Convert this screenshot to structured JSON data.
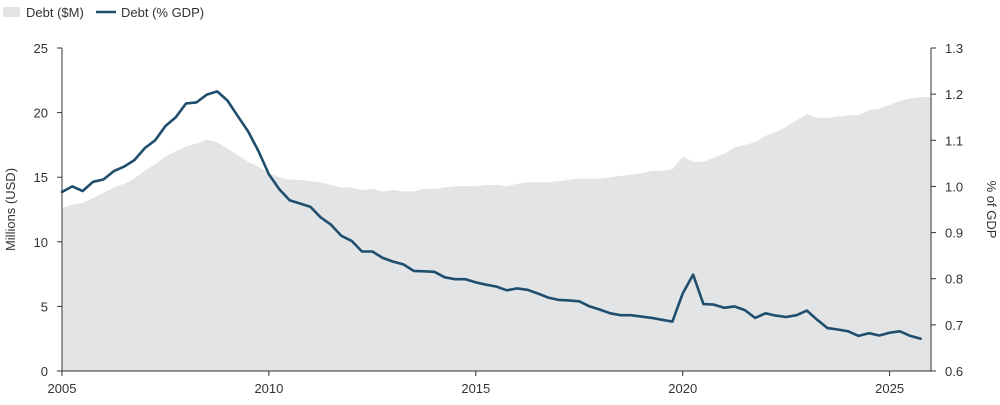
{
  "chart_data": {
    "type": "area+line",
    "title": "",
    "legend": {
      "placement": "top-left",
      "items": [
        {
          "label": "Debt ($M)",
          "kind": "area",
          "color": "#e3e4e6"
        },
        {
          "label": "Debt (% GDP)",
          "kind": "line",
          "color": "#1f4e6e"
        }
      ]
    },
    "x_axis": {
      "range": [
        2005,
        2026
      ],
      "ticks": [
        2005,
        2010,
        2015,
        2020,
        2025
      ],
      "tick_labels": [
        "2005",
        "2010",
        "2015",
        "2020",
        "2025"
      ]
    },
    "y_left": {
      "label": "Millions (USD)",
      "range": [
        0,
        25
      ],
      "ticks": [
        0,
        5,
        10,
        15,
        20,
        25
      ],
      "tick_labels": [
        "0",
        "5",
        "10",
        "15",
        "20",
        "25"
      ]
    },
    "y_right": {
      "label": "% of GDP",
      "range": [
        0.6,
        1.3
      ],
      "ticks": [
        0.6,
        0.7,
        0.8,
        0.9,
        1.0,
        1.1,
        1.2,
        1.3
      ],
      "tick_labels": [
        "0.6",
        "0.7",
        "0.8",
        "0.9",
        "1.0",
        "1.1",
        "1.2",
        "1.3"
      ]
    },
    "grid": false,
    "series": [
      {
        "name": "Debt ($M)",
        "axis": "left",
        "style": "area",
        "color": "#e3e4e6",
        "x": [
          2005.0,
          2005.25,
          2005.5,
          2005.75,
          2006.0,
          2006.25,
          2006.5,
          2006.75,
          2007.0,
          2007.25,
          2007.5,
          2007.75,
          2008.0,
          2008.25,
          2008.5,
          2008.75,
          2009.0,
          2009.25,
          2009.5,
          2009.75,
          2010.0,
          2010.25,
          2010.5,
          2010.75,
          2011.0,
          2011.25,
          2011.5,
          2011.75,
          2012.0,
          2012.25,
          2012.5,
          2012.75,
          2013.0,
          2013.25,
          2013.5,
          2013.75,
          2014.0,
          2014.25,
          2014.5,
          2014.75,
          2015.0,
          2015.25,
          2015.5,
          2015.75,
          2016.0,
          2016.25,
          2016.5,
          2016.75,
          2017.0,
          2017.25,
          2017.5,
          2017.75,
          2018.0,
          2018.25,
          2018.5,
          2018.75,
          2019.0,
          2019.25,
          2019.5,
          2019.75,
          2020.0,
          2020.25,
          2020.5,
          2020.75,
          2021.0,
          2021.25,
          2021.5,
          2021.75,
          2022.0,
          2022.25,
          2022.5,
          2022.75,
          2023.0,
          2023.25,
          2023.5,
          2023.75,
          2024.0,
          2024.25,
          2024.5,
          2024.75,
          2025.0,
          2025.25,
          2025.5,
          2025.75
        ],
        "values": [
          12.6,
          12.9,
          13.0,
          13.4,
          13.8,
          14.2,
          14.5,
          14.9,
          15.5,
          16.0,
          16.6,
          17.0,
          17.4,
          17.6,
          17.9,
          17.7,
          17.2,
          16.7,
          16.2,
          15.8,
          15.3,
          15.0,
          14.8,
          14.8,
          14.7,
          14.6,
          14.4,
          14.2,
          14.2,
          14.0,
          14.1,
          13.9,
          14.0,
          13.9,
          13.9,
          14.1,
          14.1,
          14.2,
          14.3,
          14.3,
          14.3,
          14.4,
          14.4,
          14.3,
          14.5,
          14.6,
          14.6,
          14.6,
          14.7,
          14.8,
          14.9,
          14.9,
          14.9,
          15.0,
          15.1,
          15.2,
          15.3,
          15.5,
          15.5,
          15.6,
          16.6,
          16.2,
          16.2,
          16.5,
          16.8,
          17.3,
          17.5,
          17.7,
          18.2,
          18.5,
          18.9,
          19.4,
          19.9,
          19.6,
          19.6,
          19.7,
          19.8,
          19.8,
          20.2,
          20.3,
          20.6,
          20.9,
          21.1,
          21.2
        ]
      },
      {
        "name": "Debt (% GDP)",
        "axis": "right",
        "style": "line",
        "color": "#1f4e6e",
        "x": [
          2005.0,
          2005.25,
          2005.5,
          2005.75,
          2006.0,
          2006.25,
          2006.5,
          2006.75,
          2007.0,
          2007.25,
          2007.5,
          2007.75,
          2008.0,
          2008.25,
          2008.5,
          2008.75,
          2009.0,
          2009.25,
          2009.5,
          2009.75,
          2010.0,
          2010.25,
          2010.5,
          2010.75,
          2011.0,
          2011.25,
          2011.5,
          2011.75,
          2012.0,
          2012.25,
          2012.5,
          2012.75,
          2013.0,
          2013.25,
          2013.5,
          2013.75,
          2014.0,
          2014.25,
          2014.5,
          2014.75,
          2015.0,
          2015.25,
          2015.5,
          2015.75,
          2016.0,
          2016.25,
          2016.5,
          2016.75,
          2017.0,
          2017.25,
          2017.5,
          2017.75,
          2018.0,
          2018.25,
          2018.5,
          2018.75,
          2019.0,
          2019.25,
          2019.5,
          2019.75,
          2020.0,
          2020.25,
          2020.5,
          2020.75,
          2021.0,
          2021.25,
          2021.5,
          2021.75,
          2022.0,
          2022.25,
          2022.5,
          2022.75,
          2023.0,
          2023.25,
          2023.5,
          2023.75,
          2024.0,
          2024.25,
          2024.5,
          2024.75,
          2025.0,
          2025.25,
          2025.5,
          2025.75
        ],
        "values": [
          0.988,
          1.0,
          0.99,
          1.01,
          1.015,
          1.033,
          1.043,
          1.057,
          1.083,
          1.1,
          1.131,
          1.15,
          1.18,
          1.182,
          1.199,
          1.206,
          1.186,
          1.152,
          1.119,
          1.076,
          1.026,
          0.994,
          0.97,
          0.963,
          0.956,
          0.933,
          0.917,
          0.893,
          0.882,
          0.859,
          0.859,
          0.845,
          0.837,
          0.831,
          0.817,
          0.816,
          0.815,
          0.803,
          0.799,
          0.799,
          0.792,
          0.787,
          0.783,
          0.775,
          0.779,
          0.776,
          0.768,
          0.759,
          0.754,
          0.753,
          0.751,
          0.74,
          0.733,
          0.725,
          0.721,
          0.721,
          0.718,
          0.715,
          0.711,
          0.707,
          0.768,
          0.809,
          0.745,
          0.744,
          0.737,
          0.74,
          0.732,
          0.715,
          0.725,
          0.72,
          0.717,
          0.721,
          0.731,
          0.711,
          0.693,
          0.69,
          0.686,
          0.676,
          0.682,
          0.677,
          0.683,
          0.686,
          0.676,
          0.67
        ]
      }
    ]
  }
}
